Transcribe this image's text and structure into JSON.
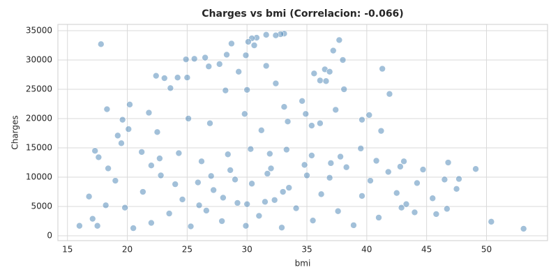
{
  "chart_data": {
    "type": "scatter",
    "title": "Charges vs bmi (Correlacion: -0.066)",
    "x_label": "bmi",
    "y_label": "Charges",
    "color": "#4682b4",
    "grid": true,
    "xlim": [
      14.2,
      55.1
    ],
    "ylim": [
      -830,
      36070
    ],
    "xticks": [
      15,
      20,
      25,
      30,
      35,
      40,
      45,
      50
    ],
    "yticks": [
      0,
      5000,
      10000,
      15000,
      20000,
      25000,
      30000,
      35000
    ],
    "x": [
      17.8,
      53.1,
      50.4,
      49.1,
      47.7,
      47.5,
      46.8,
      46.7,
      46.5,
      45.5,
      45.8,
      44.7,
      44.2,
      44,
      43.1,
      42.8,
      42.9,
      41.3,
      41.9,
      41.2,
      40.2,
      39.6,
      38.1,
      37.7,
      37.2,
      38,
      36.5,
      36.9,
      36.1,
      35.6,
      36.6,
      37.4,
      36.1,
      35.4,
      33.1,
      32.8,
      32.4,
      31.6,
      30.8,
      30.4,
      30.1,
      29.9,
      30.6,
      28.7,
      28.3,
      26.5,
      25.6,
      24.9,
      22.4,
      23.1,
      24.2,
      25,
      26.8,
      27.7,
      29.3,
      31.6,
      32.4,
      33.1,
      34.6,
      30,
      28.2,
      23.6,
      21.8,
      20.2,
      18.3,
      19.6,
      20.1,
      19.2,
      22.5,
      25.1,
      26.9,
      29.8,
      31.2,
      33.4,
      34.9,
      17.3,
      17.6,
      18.4,
      19.5,
      21.2,
      22.7,
      24.3,
      26.2,
      28.4,
      30.3,
      31.9,
      33.3,
      35.4,
      37.8,
      39.5,
      40.8,
      16.8,
      17.1,
      16,
      17.5,
      18.2,
      19,
      19.8,
      20.5,
      21.3,
      22,
      22.8,
      23.5,
      24.6,
      25.3,
      25.9,
      26.6,
      27.2,
      27.9,
      28.6,
      29.2,
      29.9,
      30.4,
      31,
      31.7,
      32.3,
      32.9,
      33.5,
      34.1,
      34.8,
      35.5,
      36.2,
      36.9,
      37.6,
      38.3,
      38.9,
      39.6,
      40.3,
      41,
      41.8,
      42.5,
      43.3,
      26,
      28,
      30,
      31.5,
      33,
      27,
      29,
      32,
      35,
      24,
      37,
      22
    ],
    "values": [
      32700,
      1200,
      2400,
      11400,
      9700,
      8000,
      12500,
      4600,
      9600,
      6400,
      3700,
      11300,
      9000,
      4000,
      12700,
      11800,
      4800,
      28500,
      24200,
      17900,
      20600,
      19800,
      25000,
      33400,
      31600,
      30000,
      28400,
      28000,
      26500,
      27700,
      26400,
      21500,
      19200,
      18800,
      34500,
      34400,
      34200,
      34300,
      33800,
      33700,
      33100,
      30800,
      32500,
      32800,
      30900,
      30400,
      30200,
      30100,
      27300,
      26900,
      27000,
      27000,
      28900,
      29300,
      28000,
      29000,
      26000,
      22000,
      23000,
      24900,
      24800,
      25200,
      21000,
      22400,
      21600,
      19800,
      18200,
      17100,
      17700,
      20000,
      19200,
      20800,
      18000,
      19500,
      20800,
      14500,
      13400,
      11500,
      15800,
      14300,
      13200,
      14100,
      12700,
      13900,
      14800,
      14000,
      14700,
      13700,
      13500,
      14900,
      12800,
      6700,
      2900,
      1700,
      1700,
      5200,
      9400,
      4800,
      1300,
      7500,
      2200,
      10300,
      3800,
      6200,
      1600,
      9100,
      4300,
      7800,
      2500,
      11200,
      5600,
      1700,
      8900,
      3400,
      10600,
      6100,
      1400,
      8200,
      4700,
      12100,
      2600,
      7100,
      9900,
      4200,
      11700,
      1800,
      6800,
      9400,
      3100,
      10900,
      7300,
      5400,
      5200,
      6500,
      5400,
      5800,
      7500,
      10200,
      9600,
      11500,
      10300,
      8800,
      12400,
      12000
    ]
  }
}
